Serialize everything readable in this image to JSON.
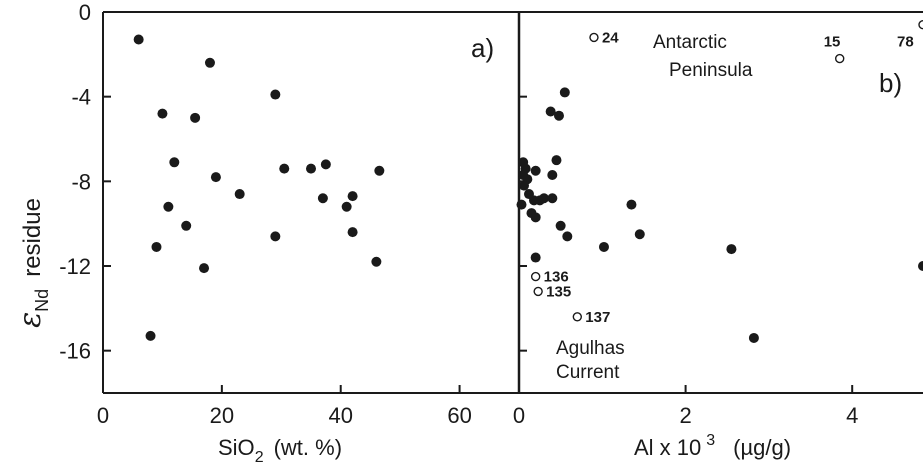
{
  "chart_data": [
    {
      "panel": "a)",
      "type": "scatter",
      "xlabel": "SiO",
      "xlabel_sub": "2",
      "xlabel_units": "(wt. %)",
      "ylabel_symbol": "ε",
      "ylabel_sub": "Nd",
      "ylabel_rest": "residue",
      "xlim": [
        0,
        70
      ],
      "ylim": [
        -18,
        0
      ],
      "x_ticks": [
        0,
        20,
        40,
        60
      ],
      "y_ticks": [
        0,
        -4,
        -8,
        -12,
        -16
      ],
      "x_tick_labels": [
        "0",
        "20",
        "40",
        "60"
      ],
      "y_tick_labels": [
        "0",
        "-4",
        "-8",
        "-12",
        "-16"
      ],
      "series": [
        {
          "marker": "filled-circle",
          "points": [
            [
              6,
              -1.3
            ],
            [
              18,
              -2.4
            ],
            [
              29,
              -3.9
            ],
            [
              10,
              -4.8
            ],
            [
              15.5,
              -5.0
            ],
            [
              12,
              -7.1
            ],
            [
              19,
              -7.8
            ],
            [
              30.5,
              -7.4
            ],
            [
              35,
              -7.4
            ],
            [
              37.5,
              -7.2
            ],
            [
              46.5,
              -7.5
            ],
            [
              23,
              -8.6
            ],
            [
              11,
              -9.2
            ],
            [
              37,
              -8.8
            ],
            [
              42,
              -8.7
            ],
            [
              41,
              -9.2
            ],
            [
              14,
              -10.1
            ],
            [
              29,
              -10.6
            ],
            [
              42,
              -10.4
            ],
            [
              9,
              -11.1
            ],
            [
              17,
              -12.1
            ],
            [
              46,
              -11.8
            ],
            [
              8,
              -15.3
            ]
          ]
        }
      ]
    },
    {
      "panel": "b)",
      "type": "scatter",
      "xlabel": "Al x 10",
      "xlabel_sup": "3",
      "xlabel_units": "(µg/g)",
      "xlim": [
        0,
        4.85
      ],
      "ylim": [
        -18,
        0
      ],
      "x_ticks": [
        0,
        2,
        4
      ],
      "x_tick_labels": [
        "0",
        "2",
        "4"
      ],
      "y_ticks": [
        0,
        -4,
        -8,
        -12,
        -16
      ],
      "series": [
        {
          "marker": "filled-circle",
          "points": [
            [
              0.05,
              -7.1
            ],
            [
              0.08,
              -7.4
            ],
            [
              0.05,
              -7.7
            ],
            [
              0.1,
              -7.9
            ],
            [
              0.06,
              -8.2
            ],
            [
              0.12,
              -8.6
            ],
            [
              0.03,
              -9.1
            ],
            [
              0.15,
              -9.5
            ],
            [
              0.2,
              -9.7
            ],
            [
              0.18,
              -8.9
            ],
            [
              0.25,
              -8.9
            ],
            [
              0.3,
              -8.8
            ],
            [
              0.2,
              -7.5
            ],
            [
              0.38,
              -4.7
            ],
            [
              0.48,
              -4.9
            ],
            [
              0.55,
              -3.8
            ],
            [
              0.45,
              -7.0
            ],
            [
              0.4,
              -7.7
            ],
            [
              0.4,
              -8.8
            ],
            [
              0.5,
              -10.1
            ],
            [
              0.58,
              -10.6
            ],
            [
              0.2,
              -11.6
            ],
            [
              1.02,
              -11.1
            ],
            [
              1.35,
              -9.1
            ],
            [
              1.45,
              -10.5
            ],
            [
              2.55,
              -11.2
            ],
            [
              2.82,
              -15.4
            ],
            [
              4.85,
              -12.0
            ]
          ]
        },
        {
          "marker": "open-circle",
          "points": [
            [
              0.9,
              -1.2
            ],
            [
              3.85,
              -2.2
            ],
            [
              4.85,
              -0.6
            ],
            [
              0.2,
              -12.5
            ],
            [
              0.23,
              -13.2
            ],
            [
              0.7,
              -14.4
            ]
          ]
        }
      ],
      "point_labels": [
        {
          "text": "24",
          "x": 0.9,
          "y": -1.2
        },
        {
          "text": "15",
          "x": 3.85,
          "y": -2.2
        },
        {
          "text": "78",
          "x": 4.85,
          "y": -0.6
        },
        {
          "text": "136",
          "x": 0.2,
          "y": -12.5
        },
        {
          "text": "135",
          "x": 0.23,
          "y": -13.2
        },
        {
          "text": "137",
          "x": 0.7,
          "y": -14.4
        }
      ],
      "annotations": {
        "antarctic_line1": "Antarctic",
        "antarctic_line2": "Peninsula",
        "agulhas_line1": "Agulhas",
        "agulhas_line2": "Current"
      }
    }
  ]
}
